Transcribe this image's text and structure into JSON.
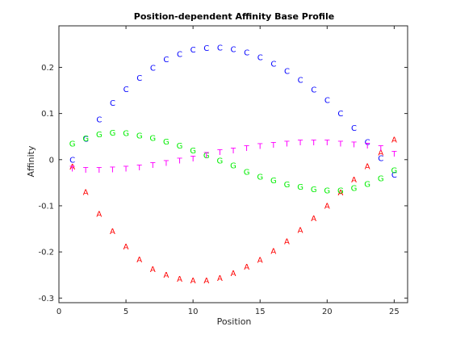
{
  "chart_data": {
    "type": "scatter",
    "title": "Position-dependent Affinity Base Profile",
    "xlabel": "Position",
    "ylabel": "Affinity",
    "xlim": [
      0,
      26
    ],
    "ylim": [
      -0.31,
      0.29
    ],
    "xticks": [
      0,
      5,
      10,
      15,
      20,
      25
    ],
    "yticks": [
      -0.3,
      -0.2,
      -0.1,
      0,
      0.1,
      0.2
    ],
    "grid": false,
    "legend": "none",
    "x": [
      1,
      2,
      3,
      4,
      5,
      6,
      7,
      8,
      9,
      10,
      11,
      12,
      13,
      14,
      15,
      16,
      17,
      18,
      19,
      20,
      21,
      22,
      23,
      24,
      25
    ],
    "series": [
      {
        "marker": "A",
        "color": "#ff0000",
        "values": [
          -0.015,
          -0.07,
          -0.118,
          -0.155,
          -0.188,
          -0.216,
          -0.237,
          -0.25,
          -0.258,
          -0.262,
          -0.262,
          -0.257,
          -0.246,
          -0.232,
          -0.217,
          -0.198,
          -0.177,
          -0.153,
          -0.127,
          -0.1,
          -0.071,
          -0.043,
          -0.014,
          0.015,
          0.043
        ]
      },
      {
        "marker": "C",
        "color": "#0000ff",
        "values": [
          0.0,
          0.045,
          0.087,
          0.123,
          0.153,
          0.177,
          0.199,
          0.217,
          0.229,
          0.238,
          0.242,
          0.243,
          0.239,
          0.232,
          0.222,
          0.208,
          0.192,
          0.173,
          0.152,
          0.129,
          0.1,
          0.069,
          0.038,
          0.003,
          -0.033
        ]
      },
      {
        "marker": "G",
        "color": "#00ee00",
        "values": [
          0.035,
          0.046,
          0.055,
          0.058,
          0.057,
          0.052,
          0.047,
          0.039,
          0.03,
          0.02,
          0.009,
          -0.002,
          -0.013,
          -0.027,
          -0.037,
          -0.045,
          -0.054,
          -0.059,
          -0.064,
          -0.067,
          -0.067,
          -0.062,
          -0.053,
          -0.041,
          -0.023
        ]
      },
      {
        "marker": "T",
        "color": "#ff00ff",
        "values": [
          -0.02,
          -0.022,
          -0.022,
          -0.021,
          -0.02,
          -0.017,
          -0.012,
          -0.007,
          -0.002,
          0.002,
          0.01,
          0.016,
          0.02,
          0.025,
          0.029,
          0.032,
          0.035,
          0.037,
          0.037,
          0.037,
          0.035,
          0.033,
          0.03,
          0.025,
          0.013
        ]
      }
    ]
  }
}
